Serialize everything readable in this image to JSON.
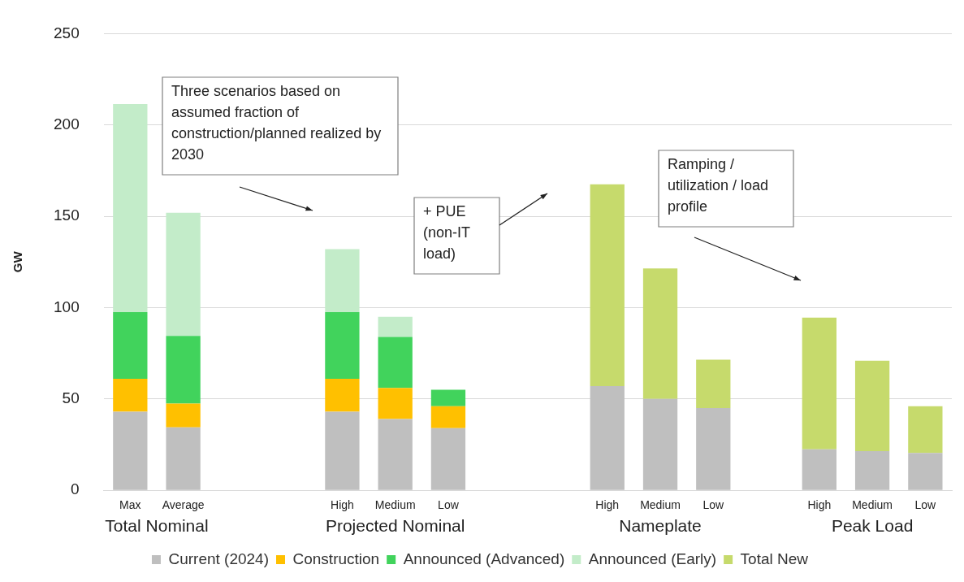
{
  "chart_data": {
    "type": "bar",
    "stacked": true,
    "ylabel": "GW",
    "categories": [
      "Max",
      "Average",
      null,
      null,
      "High",
      "Medium",
      "Low",
      null,
      null,
      "High",
      "Medium",
      "Low",
      null,
      "High",
      "Medium",
      "Low"
    ],
    "series": [
      {
        "name": "Current (2024)",
        "color": "#bfbfbf",
        "values": [
          43,
          34.5,
          null,
          null,
          43,
          39,
          34,
          null,
          null,
          57,
          50,
          45,
          null,
          22.5,
          21.5,
          20.5
        ]
      },
      {
        "name": "Construction",
        "color": "#ffc000",
        "values": [
          18,
          13,
          null,
          null,
          18,
          17,
          12,
          null,
          null,
          null,
          null,
          null,
          null,
          null,
          null,
          null
        ]
      },
      {
        "name": "Announced (Advanced)",
        "color": "#41d35c",
        "values": [
          36.5,
          37,
          null,
          null,
          36.5,
          28,
          9,
          null,
          null,
          null,
          null,
          null,
          null,
          null,
          null,
          null
        ]
      },
      {
        "name": "Announced (Early)",
        "color": "#c3ecc9",
        "values": [
          114,
          67.5,
          null,
          null,
          34.5,
          11,
          null,
          null,
          null,
          null,
          null,
          null,
          null,
          null,
          null,
          null
        ]
      },
      {
        "name": "Total New",
        "color": "#c6da6c",
        "values": [
          null,
          null,
          null,
          null,
          null,
          null,
          null,
          null,
          null,
          110.5,
          71.5,
          26.5,
          null,
          72,
          49.5,
          25.5
        ]
      }
    ],
    "ylim": [
      0,
      250
    ],
    "yticks": [
      0,
      50,
      100,
      150,
      200,
      250
    ],
    "grid": "y",
    "legend": "bottom",
    "annotations": [
      "Total Nominal",
      "Projected Nominal",
      "Nameplate",
      "Peak Load",
      "Three scenarios based on assumed fraction of construction/planned realized by 2030",
      "+ PUE (non-IT load)",
      "Ramping / utilization / load profile"
    ]
  }
}
